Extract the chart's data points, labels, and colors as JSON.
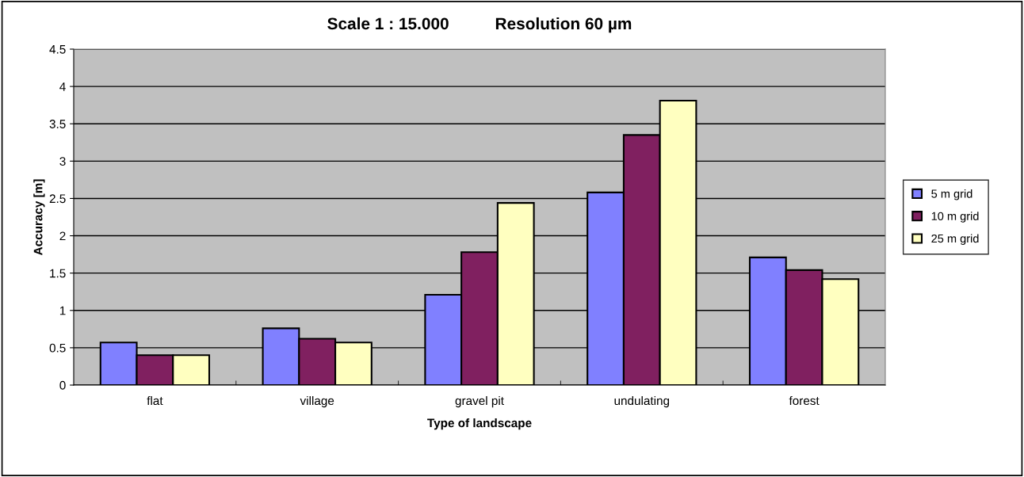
{
  "chart_data": {
    "type": "bar",
    "title": "Scale 1 : 15.000          Resolution 60 µm",
    "xlabel": "Type of landscape",
    "ylabel": "Accuracy [m]",
    "categories": [
      "flat",
      "village",
      "gravel pit",
      "undulating",
      "forest"
    ],
    "series": [
      {
        "name": "5 m grid",
        "color": "#8080ff",
        "values": [
          0.57,
          0.76,
          1.21,
          2.58,
          1.71
        ]
      },
      {
        "name": "10 m grid",
        "color": "#802060",
        "values": [
          0.4,
          0.62,
          1.78,
          3.35,
          1.54
        ]
      },
      {
        "name": "25 m grid",
        "color": "#ffffc0",
        "values": [
          0.4,
          0.57,
          2.44,
          3.81,
          1.42
        ]
      }
    ],
    "ylim": [
      0,
      4.5
    ],
    "yticks": [
      0,
      0.5,
      1,
      1.5,
      2,
      2.5,
      3,
      3.5,
      4,
      4.5
    ],
    "grid": "y",
    "legend": "right"
  }
}
